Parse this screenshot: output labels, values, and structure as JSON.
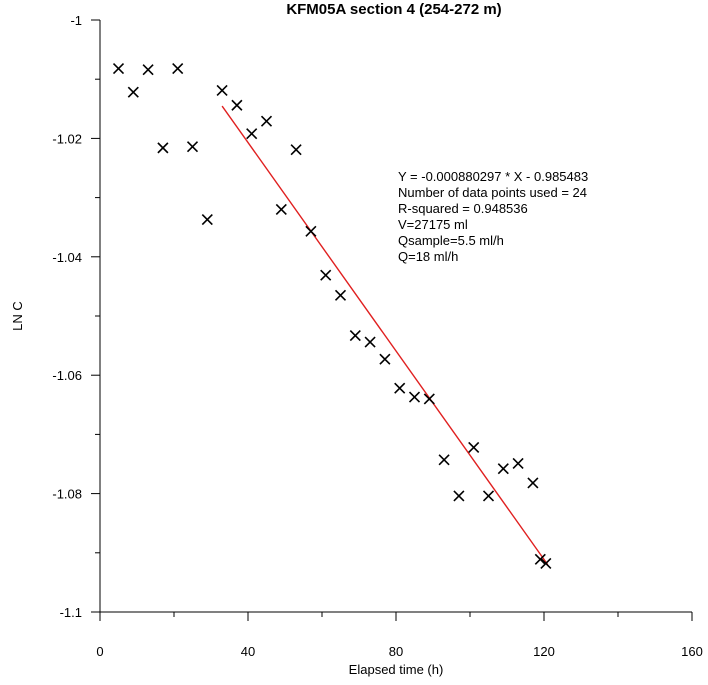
{
  "chart_data": {
    "type": "scatter",
    "title": "KFM05A section 4 (254-272 m)",
    "xlabel": "Elapsed time (h)",
    "ylabel": "LN C",
    "xlim": [
      0,
      160
    ],
    "ylim": [
      -1.1,
      -1.0
    ],
    "x_ticks": [
      0,
      40,
      80,
      120,
      160
    ],
    "y_ticks": [
      -1,
      -1.02,
      -1.04,
      -1.06,
      -1.08,
      -1.1
    ],
    "x_tick_labels": [
      "0",
      "40",
      "80",
      "120",
      "160"
    ],
    "y_tick_labels": [
      "-1",
      "-1.02",
      "-1.04",
      "-1.06",
      "-1.08",
      "-1.1"
    ],
    "grid": false,
    "legend": "none",
    "marker_color": "#000000",
    "fit_color": "#e02020",
    "points": [
      {
        "x": 5,
        "y": -1.0082
      },
      {
        "x": 9,
        "y": -1.0122
      },
      {
        "x": 13,
        "y": -1.0084
      },
      {
        "x": 17,
        "y": -1.0216
      },
      {
        "x": 21,
        "y": -1.0082
      },
      {
        "x": 25,
        "y": -1.0214
      },
      {
        "x": 29,
        "y": -1.0337
      },
      {
        "x": 33,
        "y": -1.0119
      },
      {
        "x": 37,
        "y": -1.0144
      },
      {
        "x": 41,
        "y": -1.0192
      },
      {
        "x": 45,
        "y": -1.0171
      },
      {
        "x": 49,
        "y": -1.032
      },
      {
        "x": 53,
        "y": -1.0219
      },
      {
        "x": 57,
        "y": -1.0357
      },
      {
        "x": 61,
        "y": -1.0431
      },
      {
        "x": 65,
        "y": -1.0465
      },
      {
        "x": 69,
        "y": -1.0533
      },
      {
        "x": 73,
        "y": -1.0544
      },
      {
        "x": 77,
        "y": -1.0573
      },
      {
        "x": 81,
        "y": -1.0622
      },
      {
        "x": 85,
        "y": -1.0637
      },
      {
        "x": 89,
        "y": -1.064
      },
      {
        "x": 93,
        "y": -1.0743
      },
      {
        "x": 97,
        "y": -1.0804
      },
      {
        "x": 101,
        "y": -1.0722
      },
      {
        "x": 105,
        "y": -1.0804
      },
      {
        "x": 109,
        "y": -1.0758
      },
      {
        "x": 113,
        "y": -1.0749
      },
      {
        "x": 117,
        "y": -1.0782
      },
      {
        "x": 119,
        "y": -1.0911
      },
      {
        "x": 120.5,
        "y": -1.0918
      }
    ],
    "fit_line": {
      "x_start": 33,
      "x_end": 121,
      "slope": -0.000880297,
      "intercept": -0.985483
    },
    "annotations": [
      "Y = -0.000880297 * X - 0.985483",
      "Number of data points used = 24",
      "R-squared = 0.948536",
      "V=27175 ml",
      "Qsample=5.5 ml/h",
      "Q=18 ml/h"
    ]
  }
}
